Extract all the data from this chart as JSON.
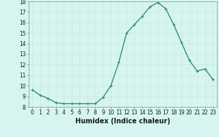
{
  "x": [
    0,
    1,
    2,
    3,
    4,
    5,
    6,
    7,
    8,
    9,
    10,
    11,
    12,
    13,
    14,
    15,
    16,
    17,
    18,
    19,
    20,
    21,
    22,
    23
  ],
  "y": [
    9.6,
    9.1,
    8.8,
    8.4,
    8.3,
    8.3,
    8.3,
    8.3,
    8.3,
    8.9,
    10.0,
    12.2,
    15.0,
    15.8,
    16.6,
    17.5,
    17.9,
    17.3,
    15.8,
    14.1,
    12.4,
    11.4,
    11.6,
    10.6
  ],
  "line_color": "#2e8b74",
  "marker": "+",
  "marker_size": 3,
  "bg_color": "#d6f5f0",
  "grid_color": "#c8e8e2",
  "xlabel": "Humidex (Indice chaleur)",
  "xlim": [
    -0.5,
    23.5
  ],
  "ylim": [
    8,
    18
  ],
  "yticks": [
    8,
    9,
    10,
    11,
    12,
    13,
    14,
    15,
    16,
    17,
    18
  ],
  "xticks": [
    0,
    1,
    2,
    3,
    4,
    5,
    6,
    7,
    8,
    9,
    10,
    11,
    12,
    13,
    14,
    15,
    16,
    17,
    18,
    19,
    20,
    21,
    22,
    23
  ],
  "xtick_labels": [
    "0",
    "1",
    "2",
    "3",
    "4",
    "5",
    "6",
    "7",
    "8",
    "9",
    "10",
    "11",
    "12",
    "13",
    "14",
    "15",
    "16",
    "17",
    "18",
    "19",
    "20",
    "21",
    "22",
    "23"
  ],
  "tick_fontsize": 5.5,
  "xlabel_fontsize": 7,
  "line_width": 1.0,
  "marker_edge_width": 0.8
}
